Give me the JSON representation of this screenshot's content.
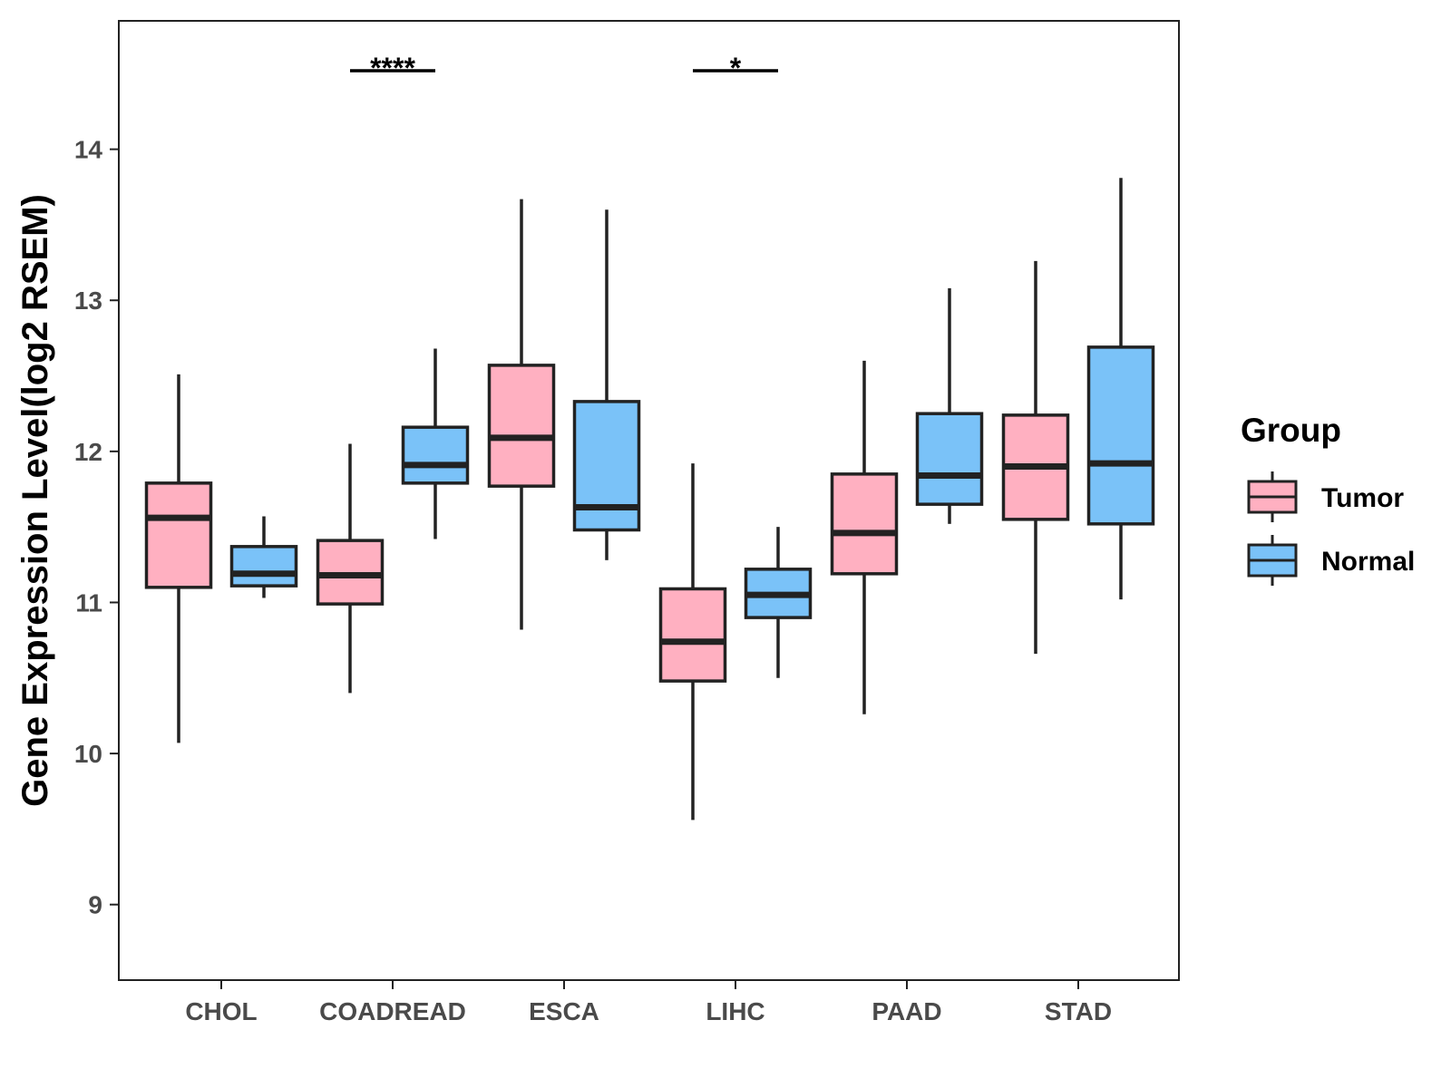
{
  "chart_data": {
    "type": "boxplot",
    "title": "",
    "xlabel": "",
    "ylabel": "Gene Expression Level(log2 RSEM)",
    "ylim": [
      8.5,
      14.85
    ],
    "yticks": [
      9,
      10,
      11,
      12,
      13,
      14
    ],
    "categories": [
      "CHOL",
      "COADREAD",
      "ESCA",
      "LIHC",
      "PAAD",
      "STAD"
    ],
    "grid": false,
    "legend": {
      "title": "Group",
      "placement": "right",
      "entries": [
        "Tumor",
        "Normal"
      ]
    },
    "series": [
      {
        "name": "Tumor",
        "color": "#FFB0C1",
        "boxes": [
          {
            "category": "CHOL",
            "min": 10.07,
            "q1": 11.1,
            "median": 11.56,
            "q3": 11.79,
            "max": 12.51
          },
          {
            "category": "COADREAD",
            "min": 10.4,
            "q1": 10.99,
            "median": 11.18,
            "q3": 11.41,
            "max": 12.05
          },
          {
            "category": "ESCA",
            "min": 10.82,
            "q1": 11.77,
            "median": 12.09,
            "q3": 12.57,
            "max": 13.67
          },
          {
            "category": "LIHC",
            "min": 9.56,
            "q1": 10.48,
            "median": 10.74,
            "q3": 11.09,
            "max": 11.92
          },
          {
            "category": "PAAD",
            "min": 10.26,
            "q1": 11.19,
            "median": 11.46,
            "q3": 11.85,
            "max": 12.6
          },
          {
            "category": "STAD",
            "min": 10.66,
            "q1": 11.55,
            "median": 11.9,
            "q3": 12.24,
            "max": 13.26
          }
        ]
      },
      {
        "name": "Normal",
        "color": "#7AC2F8",
        "boxes": [
          {
            "category": "CHOL",
            "min": 11.03,
            "q1": 11.11,
            "median": 11.19,
            "q3": 11.37,
            "max": 11.57
          },
          {
            "category": "COADREAD",
            "min": 11.42,
            "q1": 11.79,
            "median": 11.91,
            "q3": 12.16,
            "max": 12.68
          },
          {
            "category": "ESCA",
            "min": 11.28,
            "q1": 11.48,
            "median": 11.63,
            "q3": 12.33,
            "max": 13.6
          },
          {
            "category": "LIHC",
            "min": 10.5,
            "q1": 10.9,
            "median": 11.05,
            "q3": 11.22,
            "max": 11.5
          },
          {
            "category": "PAAD",
            "min": 11.52,
            "q1": 11.65,
            "median": 11.84,
            "q3": 12.25,
            "max": 13.08
          },
          {
            "category": "STAD",
            "min": 11.02,
            "q1": 11.52,
            "median": 11.92,
            "q3": 12.69,
            "max": 13.81
          }
        ]
      }
    ],
    "annotations": [
      {
        "category": "COADREAD",
        "label": "****",
        "y": 14.52
      },
      {
        "category": "LIHC",
        "label": "*",
        "y": 14.52
      }
    ]
  }
}
